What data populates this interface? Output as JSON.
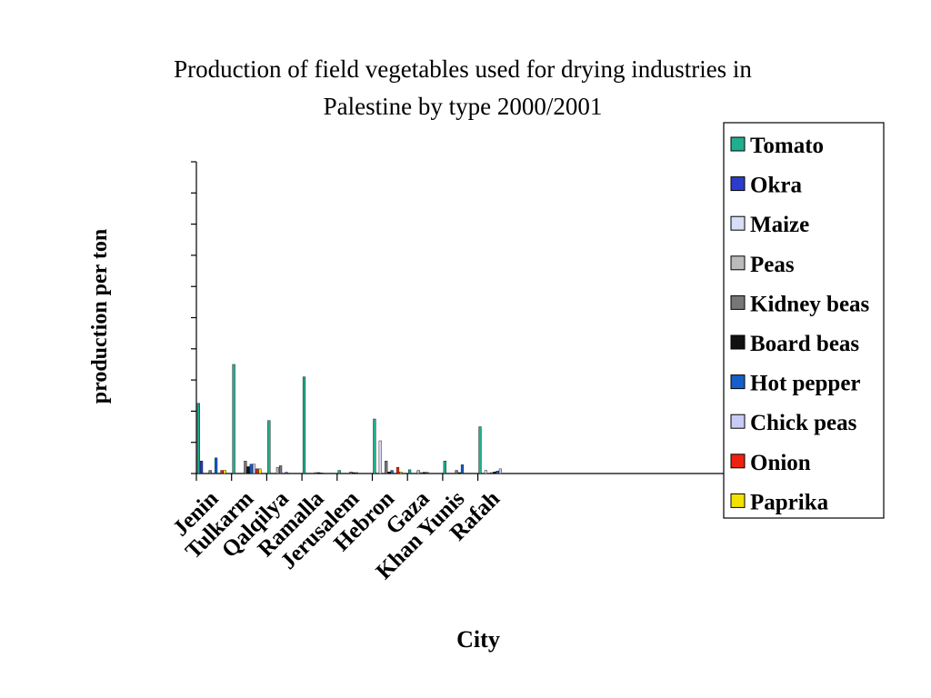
{
  "chart_data": {
    "type": "bar",
    "title": "Production of field vegetables used for drying industries in Palestine by type 2000/2001",
    "title_lines": [
      "Production of field vegetables used for drying industries in",
      "Palestine by type 2000/2001"
    ],
    "xlabel": "City",
    "ylabel": "production per ton",
    "categories": [
      "Jenin",
      "Tulkarm",
      "Qalqilya",
      "Ramalla",
      "Jerusalem",
      "Hebron",
      "Gaza",
      "Khan Yunis",
      "Rafah"
    ],
    "ylim": [
      0,
      100
    ],
    "y_tick_count": 10,
    "grid": false,
    "legend_position": "right",
    "series": [
      {
        "name": "Tomato",
        "color": "#1FAF8F",
        "values": [
          22.5,
          35,
          17,
          31,
          1,
          17.5,
          1.2,
          4,
          15
        ]
      },
      {
        "name": "Okra",
        "color": "#2B3CCB",
        "values": [
          4,
          0,
          0,
          0,
          0,
          0,
          0,
          0,
          0
        ]
      },
      {
        "name": "Maize",
        "color": "#D8DDF8",
        "values": [
          0,
          0,
          0,
          0,
          0,
          10.5,
          0,
          0,
          1
        ]
      },
      {
        "name": "Peas",
        "color": "#BBBBBB",
        "values": [
          0,
          0,
          2,
          0,
          0,
          0,
          1,
          0,
          0
        ]
      },
      {
        "name": "Kidney beas",
        "color": "#777777",
        "values": [
          1,
          4,
          2.5,
          0.3,
          0.5,
          4,
          0.3,
          1,
          0.3
        ]
      },
      {
        "name": "Board beas",
        "color": "#111111",
        "values": [
          0,
          2.2,
          0,
          0.3,
          0.3,
          0.5,
          0.4,
          0.3,
          0.5
        ]
      },
      {
        "name": "Hot pepper",
        "color": "#1560C8",
        "values": [
          5,
          3,
          0.4,
          0.2,
          0.3,
          1,
          0.4,
          2.8,
          0.8
        ]
      },
      {
        "name": "Chick peas",
        "color": "#C8CCF5",
        "values": [
          0,
          3,
          0,
          0,
          0,
          0,
          0,
          0,
          1.5
        ]
      },
      {
        "name": "Onion",
        "color": "#EE2211",
        "values": [
          1,
          1.5,
          0,
          0,
          0,
          2,
          0,
          0,
          0
        ]
      },
      {
        "name": "Paprika",
        "color": "#F2E200",
        "values": [
          1,
          1.5,
          0,
          0,
          0,
          0.5,
          0,
          0,
          0
        ]
      }
    ]
  }
}
